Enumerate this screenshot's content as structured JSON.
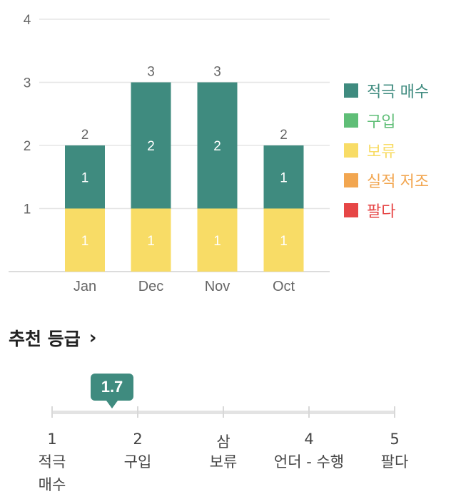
{
  "chart_data": {
    "type": "bar",
    "stacked": true,
    "categories": [
      "Jan",
      "Dec",
      "Nov",
      "Oct"
    ],
    "series": [
      {
        "name": "보류",
        "values": [
          1,
          1,
          1,
          1
        ],
        "color": "#f8dc66"
      },
      {
        "name": "적극 매수",
        "values": [
          1,
          2,
          2,
          1
        ],
        "color": "#3f8b7f"
      }
    ],
    "totals": [
      2,
      3,
      3,
      2
    ],
    "ylim": [
      0,
      4
    ],
    "yticks": [
      1,
      2,
      3,
      4
    ],
    "grid": true,
    "legend_position": "right",
    "title": "",
    "xlabel": "",
    "ylabel": ""
  },
  "legend": [
    {
      "label": "적극 매수",
      "color": "#3f8b7f"
    },
    {
      "label": "구입",
      "color": "#5fbe77"
    },
    {
      "label": "보류",
      "color": "#f8dc66"
    },
    {
      "label": "실적 저조",
      "color": "#f2a650"
    },
    {
      "label": "팔다",
      "color": "#e64646"
    }
  ],
  "recommendation": {
    "title": "추천 등급",
    "value": "1.7",
    "value_num": 1.7,
    "marker_color": "#3f8b7f",
    "ticks": [
      {
        "num": "1",
        "label": "적극\n매수"
      },
      {
        "num": "2",
        "label": "구입"
      },
      {
        "num": "삼",
        "label": "보류"
      },
      {
        "num": "4",
        "label": "언더 - 수행"
      },
      {
        "num": "5",
        "label": "팔다"
      }
    ]
  }
}
